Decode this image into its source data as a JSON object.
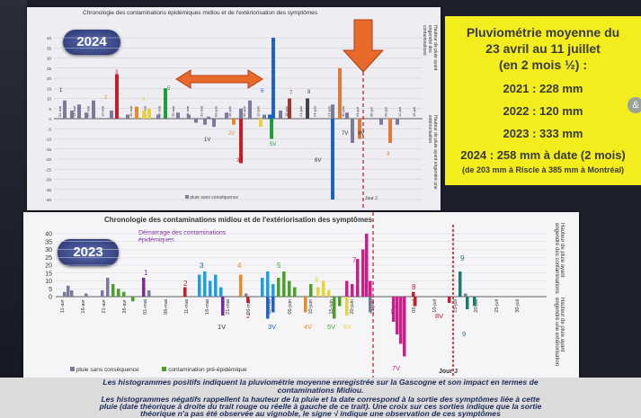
{
  "panel2024": {
    "title": "Chronologie des contaminations épidémiques midiou et de l'extériorisation des symptômes",
    "year": "2024",
    "right_label_top": "Hauteur de pluie ayant engendré des contaminations",
    "right_label_bottom": "Hauteur de pluie ayant engendré une extériorisation",
    "legend": "pluie sans conséquence",
    "jour_label": "Jour J"
  },
  "panel2023": {
    "title": "Chronologie des contaminations midiou et de l'extériorisation des symptômes",
    "year": "2023",
    "annotation": "Démarrage des contaminations épidémiques",
    "right_label_top": "Hauteur de pluie ayant engendré des contaminations",
    "right_label_bottom": "Hauteur de pluie ayant engendré une extériorisation",
    "legend1": "pluie sans conséquence",
    "legend2": "contamination pré-épidémique",
    "jour_label": "Jour J"
  },
  "pluvio": {
    "title1": "Pluviométrie moyenne du",
    "title2": "23 avril au 11 juillet",
    "title3": "(en 2 mois ½) :",
    "y2021": "2021 : 228 mm",
    "y2022": "2022 : 120 mm",
    "y2023": "2023 : 333 mm",
    "y2024": "2024 : 258 mm à date (2 mois)",
    "note": "(de 203 mm à Riscle à 385 mm à Montréal)"
  },
  "footer": {
    "line1": "Les histogrammes positifs indiquent la pluviométrie moyenne enregistrée sur la Gascogne et son impact en termes de",
    "line2": "contaminations Midiou.",
    "line3": "Les histogrammes négatifs rappellent la hauteur de la pluie et la date correspond à la sortie des symptômes liée à cette",
    "line4": "pluie (date théorique à droite du trait rouge ou réelle à gauche de ce trait). Une croix sur ces sorties indique que la sortie",
    "line5": "théorique n'a pas été observée au vignoble, le signe √ indique une observation de ces symptômes"
  },
  "chart_data": [
    {
      "type": "bar",
      "title": "Chronologie des contaminations épidémiques midiou et de l'extériorisation des symptômes",
      "ylim": [
        -40,
        40
      ],
      "y_ticks": [
        40,
        35,
        30,
        25,
        20,
        15,
        10,
        5,
        0,
        -5,
        -10,
        -15,
        -20,
        -25,
        -30,
        -35,
        -40
      ],
      "x_tick_labels": [
        "01-mai",
        "04-mai",
        "07-mai",
        "10-mai",
        "13-mai",
        "16-mai",
        "19-mai",
        "22-mai",
        "25-mai",
        "28-mai",
        "31-mai",
        "03-juin",
        "06-juin",
        "09-juin",
        "12-juin",
        "15-juin",
        "18-juin",
        "21-juin",
        "24-juin",
        "27-juin",
        "30-juin",
        "03-juil",
        "06-juil",
        "09-juil",
        "12-juil",
        "15-juil"
      ],
      "positive_series": [
        {
          "color": "#7a7a9a",
          "values": [
            9,
            7,
            2,
            4,
            8,
            3,
            4,
            2,
            2,
            1,
            2,
            1,
            0,
            0,
            0,
            0,
            1,
            0,
            2,
            1,
            3,
            2,
            0,
            4,
            0,
            2,
            1,
            0,
            2,
            1,
            0,
            0,
            1,
            5,
            1,
            4,
            3,
            2,
            5,
            1,
            1,
            2,
            1,
            0,
            0,
            1,
            0,
            2,
            1,
            0,
            1
          ]
        },
        {
          "color": "#c81c2c",
          "values": [
            0,
            0,
            0,
            0,
            0,
            0,
            22,
            0,
            0,
            0,
            0,
            0,
            0,
            0,
            0,
            0,
            0,
            0,
            0,
            0,
            0,
            0,
            0,
            0,
            0,
            0,
            0,
            0,
            0,
            0,
            0,
            0,
            0,
            0,
            0,
            0,
            0,
            0,
            0,
            0,
            0,
            0,
            0,
            0,
            0,
            0,
            0,
            0,
            0,
            0,
            0
          ]
        }
      ],
      "numbered_events": [
        "1",
        "2",
        "3",
        "4",
        "5",
        "6",
        "7",
        "8",
        "9"
      ],
      "symptom_labels": [
        "1V",
        "2V",
        "3V",
        "5V",
        "6V",
        "7V",
        "8V"
      ]
    },
    {
      "type": "bar",
      "title": "Chronologie des contaminations midiou et de l'extériorisation des symptômes",
      "ylim": [
        -40,
        40
      ],
      "y_ticks": [
        40,
        35,
        30,
        25,
        20,
        15,
        10,
        5,
        0
      ],
      "x_tick_labels": [
        "11-avr",
        "16-avr",
        "21-avr",
        "26-avr",
        "01-mai",
        "06-mai",
        "11-mai",
        "16-mai",
        "21-mai",
        "26-mai",
        "31-mai",
        "05-juin",
        "10-juin",
        "15-juin",
        "20-juin",
        "25-juin",
        "30-juin",
        "05-juil",
        "10-juil",
        "15-juil",
        "20-juil",
        "25-juil",
        "30-juil"
      ],
      "numbered_events": [
        "1",
        "2",
        "3",
        "4",
        "5",
        "6",
        "7",
        "8",
        "9"
      ],
      "symptom_labels": [
        "1V",
        "2",
        "3V",
        "4V",
        "5V",
        "6V",
        "7V",
        "8V",
        "9"
      ]
    }
  ]
}
